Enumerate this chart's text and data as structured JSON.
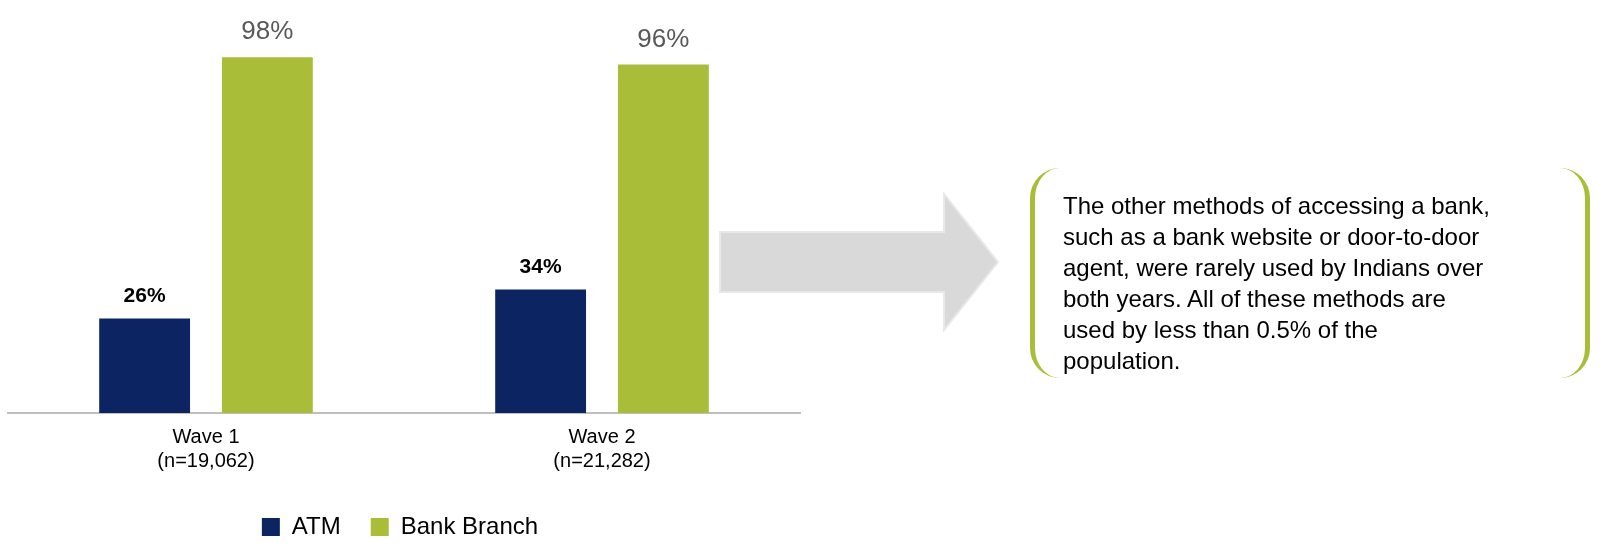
{
  "chart_data": {
    "type": "bar",
    "categories": [
      "Wave 1\n(n=19,062)",
      "Wave 2\n(n=21,282)"
    ],
    "series": [
      {
        "name": "ATM",
        "color": "#0d2463",
        "values": [
          26,
          34
        ],
        "value_labels": [
          "26%",
          "34%"
        ]
      },
      {
        "name": "Bank Branch",
        "color": "#a9bd38",
        "values": [
          98,
          96
        ],
        "value_labels": [
          "98%",
          "96%"
        ]
      }
    ],
    "tick_labels": "x",
    "grid": false,
    "legend": "bottom",
    "annotations": [
      "The other methods of accessing a bank, such as a bank website or door-to-door agent, were rarely used by Indians over both years. All of these methods are used by less than 0.5% of the population."
    ]
  }
}
